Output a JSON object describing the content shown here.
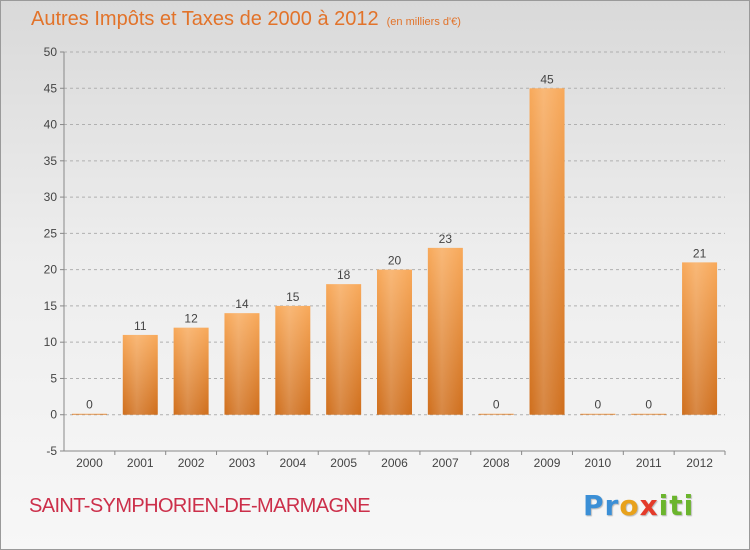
{
  "title": {
    "main": "Autres Impôts et Taxes de 2000 à 2012",
    "unit": "(en milliers d'€)"
  },
  "commune": "SAINT-SYMPHORIEN-DE-MARMAGNE",
  "logo": {
    "parts": [
      "Pr",
      "o",
      "x",
      "iti"
    ]
  },
  "colors": {
    "title": "#e2732a",
    "commune": "#cc2f4a",
    "bar_top": "#f8a95a",
    "bar_bottom": "#cf6e1c"
  },
  "chart_data": {
    "type": "bar",
    "categories": [
      "2000",
      "2001",
      "2002",
      "2003",
      "2004",
      "2005",
      "2006",
      "2007",
      "2008",
      "2009",
      "2010",
      "2011",
      "2012"
    ],
    "values": [
      0,
      11,
      12,
      14,
      15,
      18,
      20,
      23,
      0,
      45,
      0,
      0,
      21
    ],
    "value_labels": [
      "0",
      "11",
      "12",
      "14",
      "15",
      "18",
      "20",
      "23",
      "0",
      "45",
      "0",
      "0",
      "21"
    ],
    "yticks": [
      "-5",
      "0",
      "5",
      "10",
      "15",
      "20",
      "25",
      "30",
      "35",
      "40",
      "45",
      "50"
    ],
    "ylim": [
      -5,
      50
    ],
    "grid": "horizontal dashed",
    "legend": "none"
  }
}
